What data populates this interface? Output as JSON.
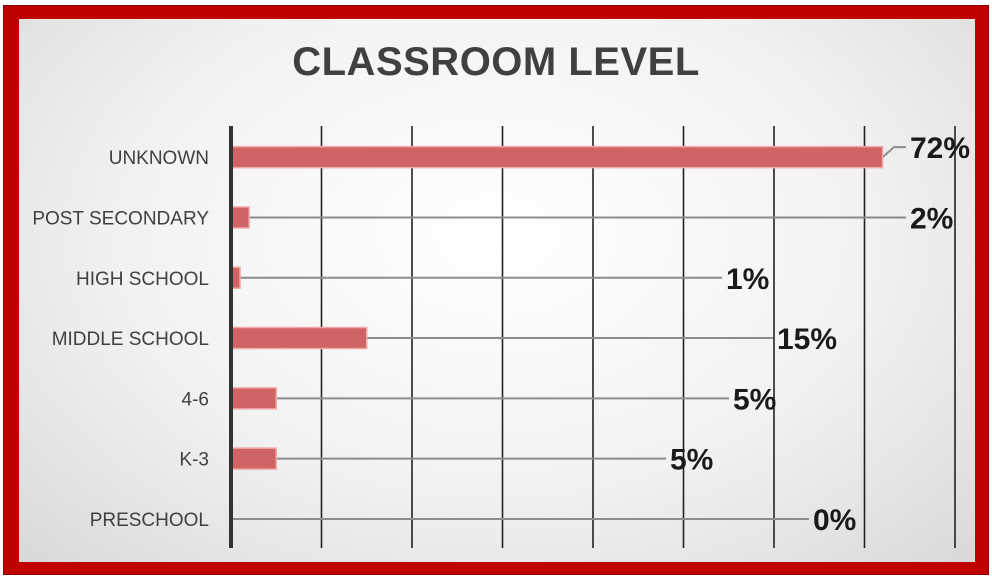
{
  "chart_data": {
    "type": "bar",
    "orientation": "horizontal",
    "title": "CLASSROOM LEVEL",
    "categories": [
      "UNKNOWN",
      "POST SECONDARY",
      "HIGH SCHOOL",
      "MIDDLE SCHOOL",
      "4-6",
      "K-3",
      "PRESCHOOL"
    ],
    "values": [
      72,
      2,
      1,
      15,
      5,
      5,
      0
    ],
    "data_labels": [
      "72%",
      "2%",
      "1%",
      "15%",
      "5%",
      "5%",
      "0%"
    ],
    "xlim": [
      0,
      80
    ],
    "grid": true,
    "legend": "none",
    "colors": {
      "bar": "#d06464",
      "bar_edge": "#f0a8a8",
      "frame": "#c00000",
      "leader": "#8c8c8c"
    }
  }
}
